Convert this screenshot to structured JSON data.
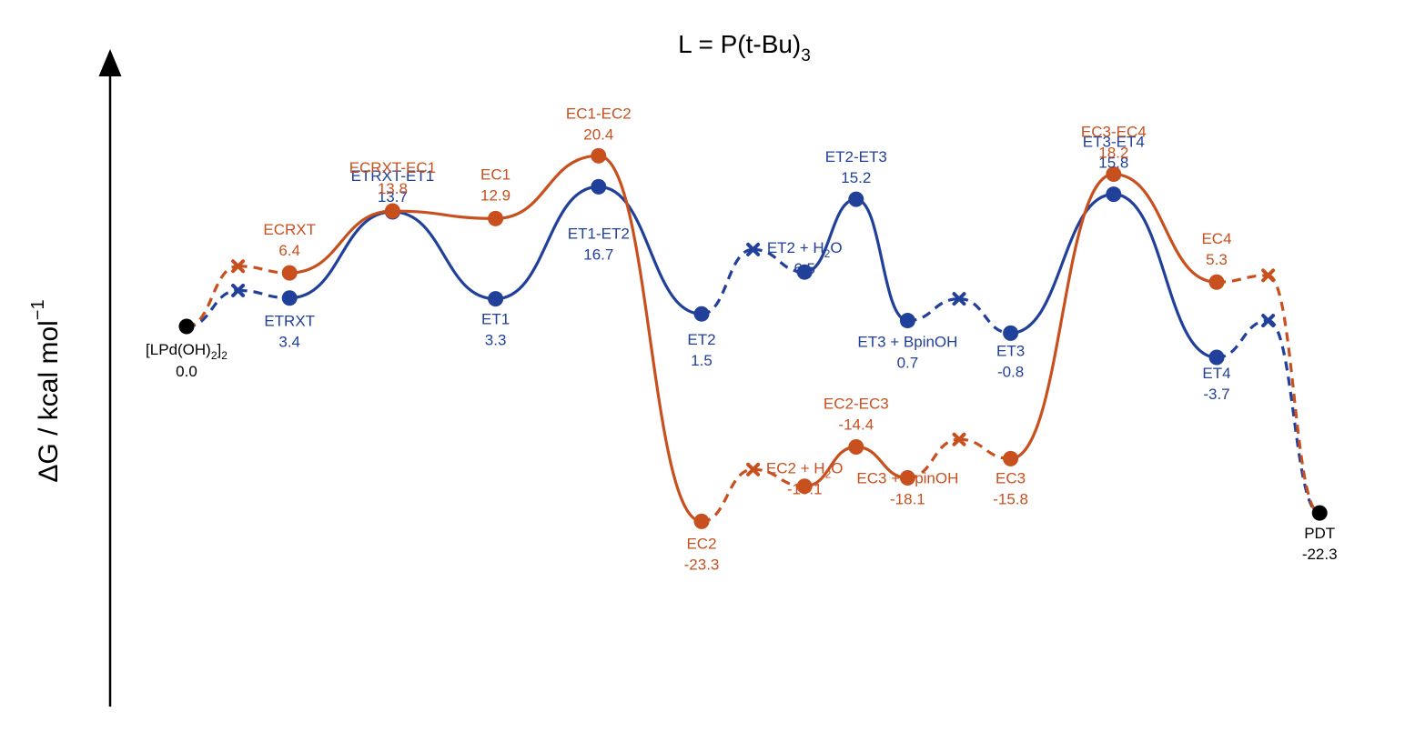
{
  "chart_data": {
    "type": "line",
    "title": "L = P(t-Bu)3",
    "title_parts": {
      "main": "L = P(t-Bu)",
      "sub": "3"
    },
    "ylabel": "ΔG / kcal mol−1",
    "ylabel_parts": {
      "main": "ΔG / kcal mol",
      "sup": "−1"
    },
    "colors": {
      "ET": "#21409a",
      "EC": "#c8501e",
      "common": "#000000"
    },
    "start": {
      "label": "[LPd(OH)2]2",
      "label_main": "[LPd(OH)",
      "label_sub1": "2",
      "label_mid": "]",
      "label_sub2": "2",
      "value": "0.0",
      "x": 0,
      "y": 0.0
    },
    "end": {
      "label": "PDT",
      "value": "-22.3",
      "x": 22,
      "y": -22.3
    },
    "series": [
      {
        "name": "ET",
        "points": [
          {
            "label": "ETRXT",
            "x": 2,
            "y": 3.4,
            "value": "3.4"
          },
          {
            "label": "ETRXT-ET1",
            "x": 4,
            "y": 13.7,
            "value": "13.7"
          },
          {
            "label": "ET1",
            "x": 6,
            "y": 3.3,
            "value": "3.3"
          },
          {
            "label": "ET1-ET2",
            "x": 8,
            "y": 16.7,
            "value": "16.7"
          },
          {
            "label": "ET2",
            "x": 10,
            "y": 1.5,
            "value": "1.5"
          },
          {
            "label": "ET2 + H2O",
            "label_main": "ET2 + H",
            "label_sub": "2",
            "label_tail": "O",
            "x": 12,
            "y": 6.5,
            "value": "6.5"
          },
          {
            "label": "ET2-ET3",
            "x": 13,
            "y": 15.2,
            "value": "15.2"
          },
          {
            "label": "ET3 + BpinOH",
            "x": 14,
            "y": 0.7,
            "value": "0.7"
          },
          {
            "label": "ET3",
            "x": 16,
            "y": -0.8,
            "value": "-0.8"
          },
          {
            "label": "ET3-ET4",
            "x": 18,
            "y": 15.8,
            "value": "15.8"
          },
          {
            "label": "ET4",
            "x": 20,
            "y": -3.7,
            "value": "-3.7"
          }
        ],
        "crosses": [
          {
            "x": 1,
            "y": 4.3
          },
          {
            "x": 11,
            "y": 9.2
          },
          {
            "x": 15,
            "y": 3.3
          },
          {
            "x": 21,
            "y": 0.7
          }
        ]
      },
      {
        "name": "EC",
        "points": [
          {
            "label": "ECRXT",
            "x": 2,
            "y": 6.4,
            "value": "6.4"
          },
          {
            "label": "ECRXT-EC1",
            "x": 4,
            "y": 13.8,
            "value": "13.8"
          },
          {
            "label": "EC1",
            "x": 6,
            "y": 12.9,
            "value": "12.9"
          },
          {
            "label": "EC1-EC2",
            "x": 8,
            "y": 20.4,
            "value": "20.4"
          },
          {
            "label": "EC2",
            "x": 10,
            "y": -23.3,
            "value": "-23.3"
          },
          {
            "label": "EC2 + H2O",
            "label_main": "EC2 + H",
            "label_sub": "2",
            "label_tail": "O",
            "x": 12,
            "y": -19.1,
            "value": "-19.1"
          },
          {
            "label": "EC2-EC3",
            "x": 13,
            "y": -14.4,
            "value": "-14.4"
          },
          {
            "label": "EC3 + BpinOH",
            "x": 14,
            "y": -18.1,
            "value": "-18.1"
          },
          {
            "label": "EC3",
            "x": 16,
            "y": -15.8,
            "value": "-15.8"
          },
          {
            "label": "EC3-EC4",
            "x": 18,
            "y": 18.2,
            "value": "18.2"
          },
          {
            "label": "EC4",
            "x": 20,
            "y": 5.3,
            "value": "5.3"
          }
        ],
        "crosses": [
          {
            "x": 1,
            "y": 7.2
          },
          {
            "x": 11,
            "y": -17.1
          },
          {
            "x": 15,
            "y": -13.5
          },
          {
            "x": 21,
            "y": 6.1
          }
        ]
      }
    ],
    "ylim": [
      -32,
      32
    ],
    "grid": false,
    "legend": "none"
  }
}
